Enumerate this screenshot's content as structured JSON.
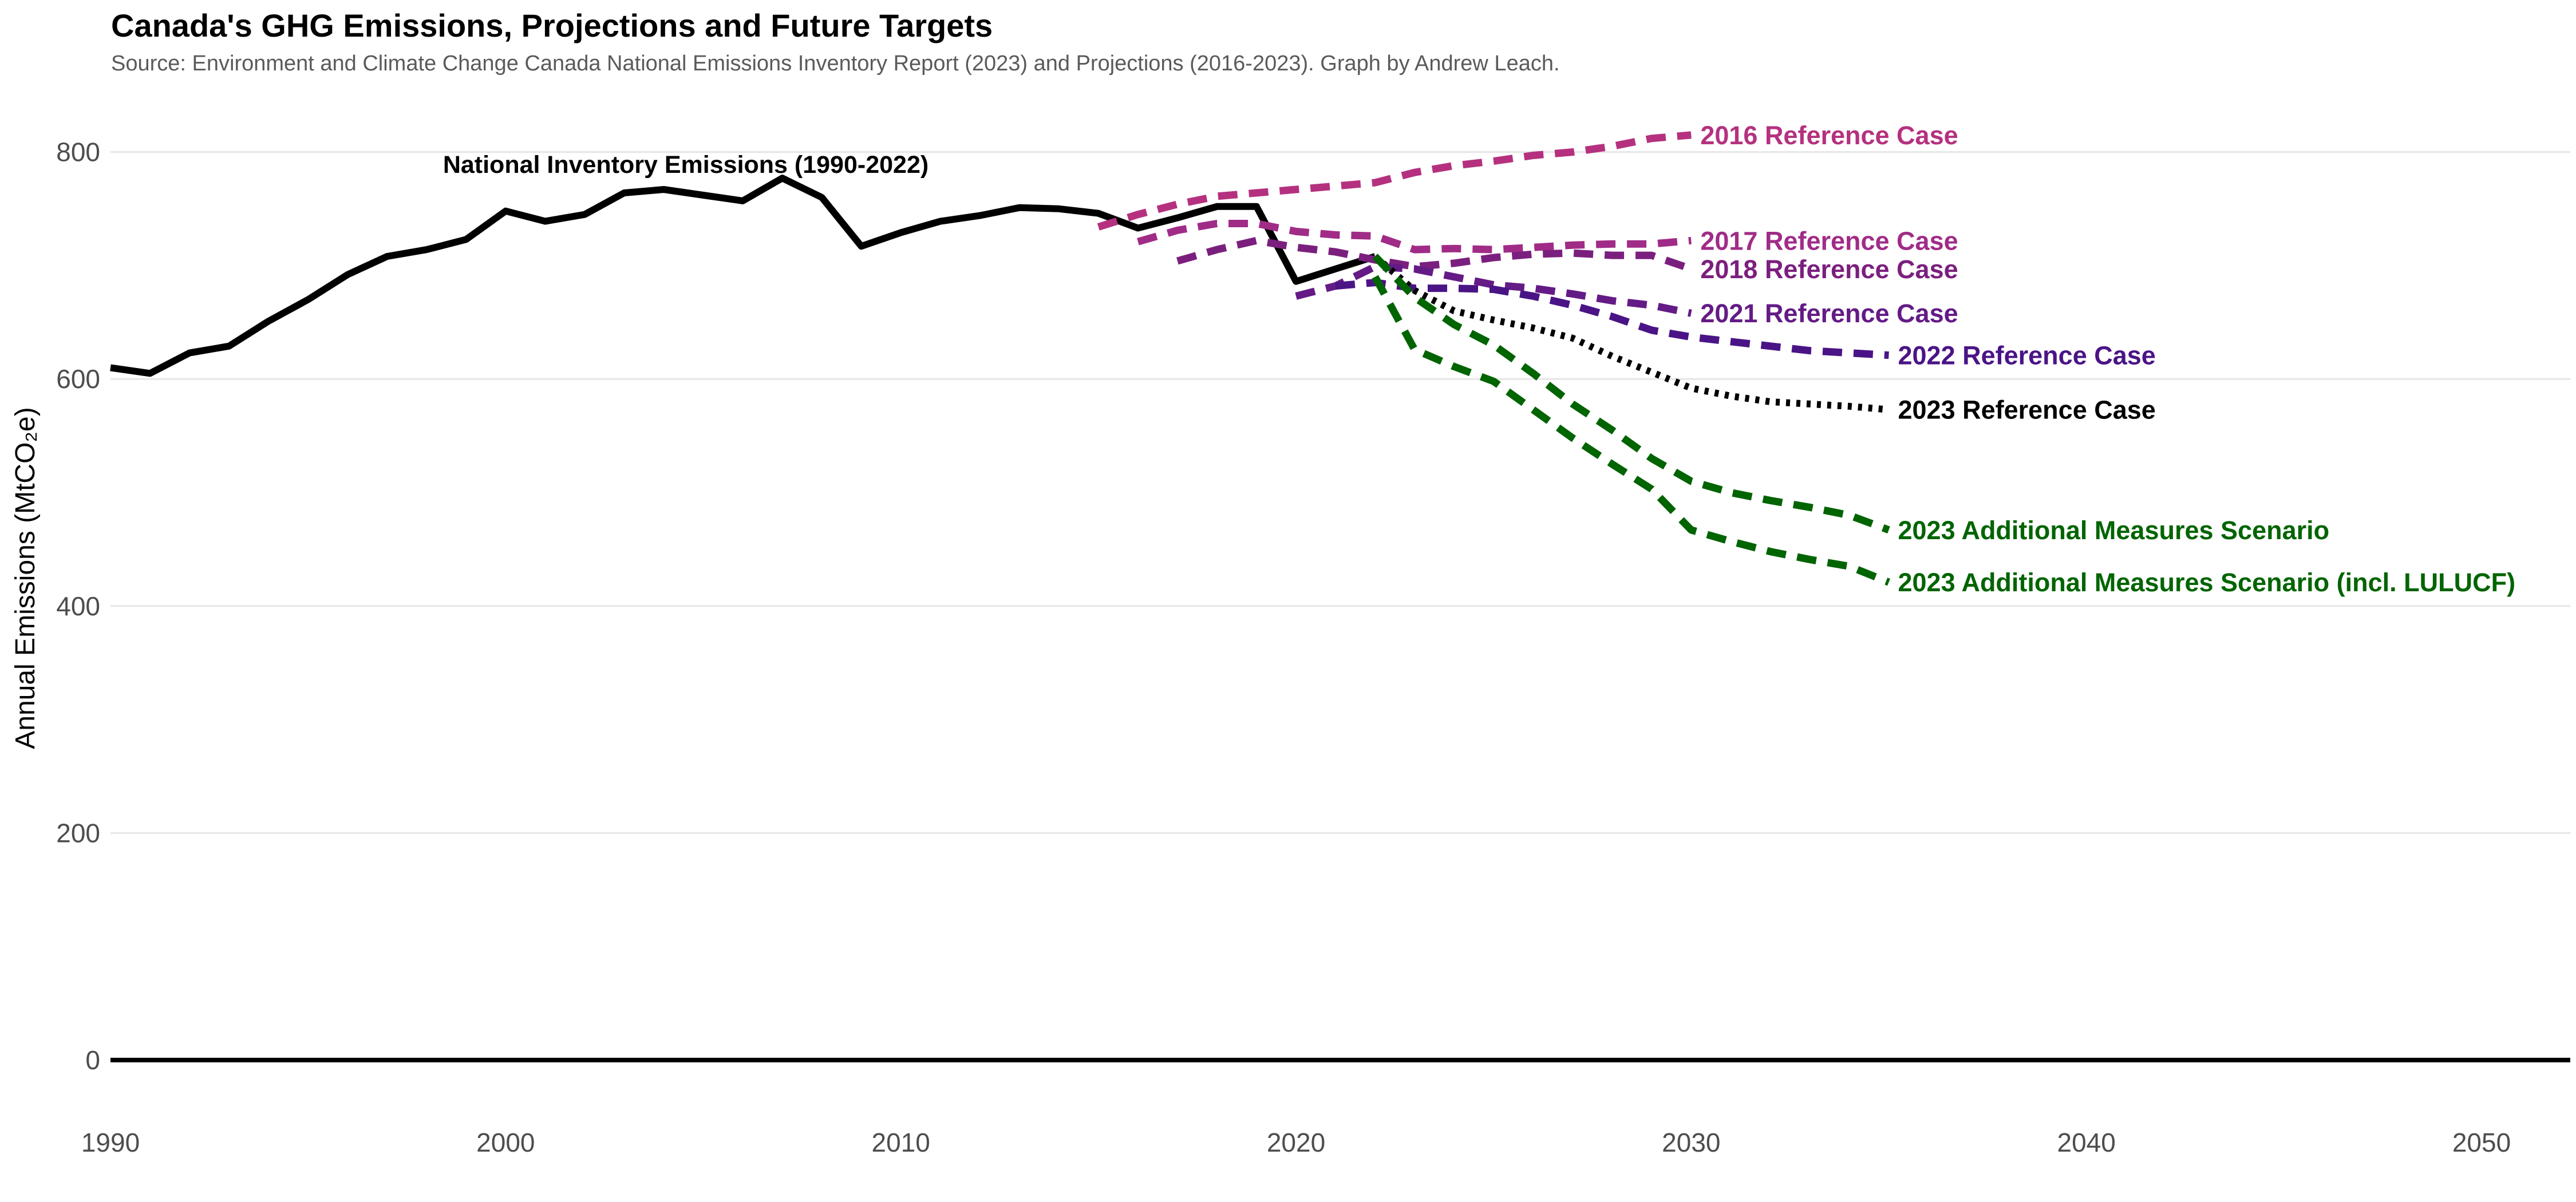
{
  "chart_data": {
    "type": "line",
    "title": "Canada's GHG Emissions, Projections and Future Targets",
    "subtitle": "Source: Environment and Climate Change Canada National Emissions Inventory Report (2023) and Projections (2016-2023). Graph by Andrew Leach.",
    "ylabel": "Annual Emissions (MtCO₂e)",
    "xlabel": "",
    "xlim": [
      1990,
      2052
    ],
    "ylim": [
      -50,
      850
    ],
    "xticks": [
      1990,
      2000,
      2010,
      2020,
      2030,
      2040,
      2050
    ],
    "yticks": [
      0,
      200,
      400,
      600,
      800
    ],
    "grid": "horizontal",
    "annotation": "National Inventory Emissions (1990-2022)",
    "series": [
      {
        "name": "National Inventory Emissions (1990-2022)",
        "color": "#000000",
        "style": "solid",
        "x": [
          1990,
          1991,
          1992,
          1993,
          1994,
          1995,
          1996,
          1997,
          1998,
          1999,
          2000,
          2001,
          2002,
          2003,
          2004,
          2005,
          2006,
          2007,
          2008,
          2009,
          2010,
          2011,
          2012,
          2013,
          2014,
          2015,
          2016,
          2017,
          2018,
          2019,
          2020,
          2021,
          2022
        ],
        "y": [
          610,
          605,
          623,
          629,
          651,
          670,
          692,
          708,
          714,
          723,
          748,
          739,
          745,
          764,
          767,
          762,
          757,
          777,
          760,
          717,
          729,
          739,
          744,
          751,
          750,
          746,
          733,
          742,
          752,
          752,
          686,
          697,
          708
        ]
      },
      {
        "name": "2016 Reference Case",
        "label": "2016 Reference Case",
        "color": "#b5317f",
        "style": "dashed",
        "x": [
          2015,
          2016,
          2017,
          2018,
          2019,
          2020,
          2021,
          2022,
          2023,
          2024,
          2025,
          2026,
          2027,
          2028,
          2029,
          2030
        ],
        "y": [
          734,
          745,
          754,
          761,
          764,
          767,
          770,
          773,
          782,
          788,
          792,
          797,
          800,
          805,
          812,
          815
        ]
      },
      {
        "name": "2017 Reference Case",
        "label": "2017 Reference Case",
        "color": "#a02c87",
        "style": "dashed",
        "x": [
          2016,
          2017,
          2018,
          2019,
          2020,
          2021,
          2022,
          2023,
          2024,
          2025,
          2026,
          2027,
          2028,
          2029,
          2030
        ],
        "y": [
          721,
          731,
          737,
          737,
          730,
          727,
          726,
          714,
          715,
          714,
          716,
          718,
          719,
          719,
          722
        ]
      },
      {
        "name": "2018 Reference Case",
        "label": "2018 Reference Case",
        "color": "#7b1f7e",
        "style": "dashed",
        "x": [
          2017,
          2018,
          2019,
          2020,
          2021,
          2022,
          2023,
          2024,
          2025,
          2026,
          2027,
          2028,
          2029,
          2030
        ],
        "y": [
          704,
          714,
          722,
          716,
          712,
          705,
          699,
          702,
          707,
          710,
          711,
          709,
          709,
          697
        ]
      },
      {
        "name": "2021 Reference Case",
        "label": "2021 Reference Case",
        "color": "#641b86",
        "style": "dashed",
        "x": [
          2020,
          2021,
          2022,
          2023,
          2024,
          2025,
          2026,
          2027,
          2028,
          2029,
          2030
        ],
        "y": [
          673,
          682,
          699,
          697,
          690,
          683,
          680,
          675,
          669,
          665,
          658
        ]
      },
      {
        "name": "2022 Reference Case",
        "label": "2022 Reference Case",
        "color": "#4a1486",
        "style": "dashed",
        "x": [
          2021,
          2022,
          2023,
          2024,
          2025,
          2026,
          2027,
          2028,
          2029,
          2030,
          2031,
          2032,
          2033,
          2034,
          2035
        ],
        "y": [
          682,
          685,
          680,
          680,
          679,
          673,
          665,
          655,
          643,
          637,
          633,
          629,
          625,
          623,
          621
        ]
      },
      {
        "name": "2023 Reference Case",
        "label": "2023 Reference Case",
        "color": "#000000",
        "style": "dotted",
        "x": [
          2022,
          2023,
          2024,
          2025,
          2026,
          2027,
          2028,
          2029,
          2030,
          2031,
          2032,
          2033,
          2034,
          2035
        ],
        "y": [
          708,
          678,
          660,
          652,
          645,
          636,
          620,
          606,
          592,
          585,
          580,
          578,
          576,
          573
        ]
      },
      {
        "name": "2023 Additional Measures Scenario",
        "label": "2023 Additional Measures Scenario",
        "color": "#006400",
        "style": "dashed",
        "x": [
          2022,
          2023,
          2024,
          2025,
          2026,
          2027,
          2028,
          2029,
          2030,
          2031,
          2032,
          2033,
          2034,
          2035
        ],
        "y": [
          708,
          672,
          648,
          630,
          605,
          578,
          555,
          530,
          510,
          500,
          493,
          487,
          480,
          467
        ]
      },
      {
        "name": "2023 Additional Measures Scenario (incl. LULUCF)",
        "label": "2023 Additional Measures Scenario (incl. LULUCF)",
        "color": "#006400",
        "style": "dashed",
        "x": [
          2022,
          2023,
          2024,
          2025,
          2026,
          2027,
          2028,
          2029,
          2030,
          2031,
          2032,
          2033,
          2034,
          2035
        ],
        "y": [
          690,
          626,
          611,
          598,
          573,
          548,
          525,
          503,
          467,
          457,
          448,
          441,
          435,
          421
        ]
      }
    ]
  }
}
